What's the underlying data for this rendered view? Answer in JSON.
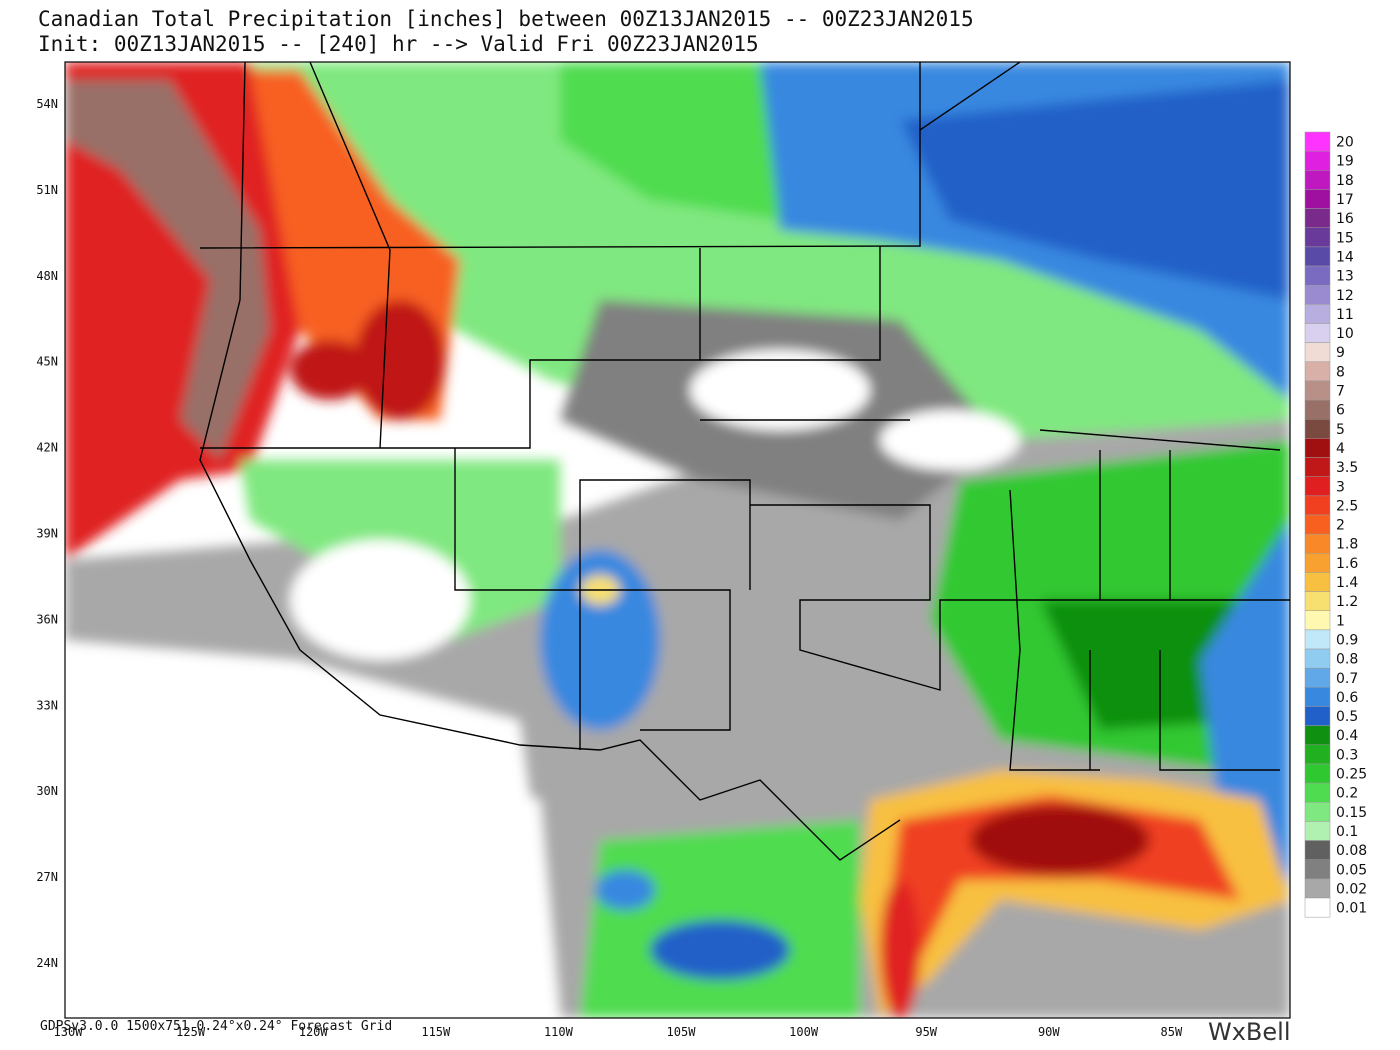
{
  "header": {
    "title": "Canadian Total Precipitation [inches] between 00Z13JAN2015 -- 00Z23JAN2015",
    "subtitle": "Init: 00Z13JAN2015 -- [240] hr --> Valid Fri 00Z23JAN2015"
  },
  "map": {
    "lat_labels": [
      "54N",
      "51N",
      "48N",
      "45N",
      "42N",
      "39N",
      "36N",
      "33N",
      "30N",
      "27N",
      "24N"
    ],
    "lon_labels": [
      "130W",
      "125W",
      "120W",
      "115W",
      "110W",
      "105W",
      "100W",
      "95W",
      "90W",
      "85W"
    ]
  },
  "legend": {
    "levels": [
      {
        "label": "20",
        "color": "#ff33ff"
      },
      {
        "label": "19",
        "color": "#e020e0"
      },
      {
        "label": "18",
        "color": "#c018c0"
      },
      {
        "label": "17",
        "color": "#a010a0"
      },
      {
        "label": "16",
        "color": "#7a2a8a"
      },
      {
        "label": "15",
        "color": "#6a3a9a"
      },
      {
        "label": "14",
        "color": "#5a4aa8"
      },
      {
        "label": "13",
        "color": "#7a6ac0"
      },
      {
        "label": "12",
        "color": "#9a8ad0"
      },
      {
        "label": "11",
        "color": "#b8aee0"
      },
      {
        "label": "10",
        "color": "#d8d0ee"
      },
      {
        "label": "9",
        "color": "#f0dcd4"
      },
      {
        "label": "8",
        "color": "#d8b0a8"
      },
      {
        "label": "7",
        "color": "#b89088"
      },
      {
        "label": "6",
        "color": "#987068"
      },
      {
        "label": "5",
        "color": "#7a4a40"
      },
      {
        "label": "4",
        "color": "#a01010"
      },
      {
        "label": "3.5",
        "color": "#c01818"
      },
      {
        "label": "3",
        "color": "#e02020"
      },
      {
        "label": "2.5",
        "color": "#f04020"
      },
      {
        "label": "2",
        "color": "#f86020"
      },
      {
        "label": "1.8",
        "color": "#f88828"
      },
      {
        "label": "1.6",
        "color": "#f8a030"
      },
      {
        "label": "1.4",
        "color": "#f8c040"
      },
      {
        "label": "1.2",
        "color": "#f8e070"
      },
      {
        "label": "1",
        "color": "#fff8b0"
      },
      {
        "label": "0.9",
        "color": "#c0e8f8"
      },
      {
        "label": "0.8",
        "color": "#90ccf0"
      },
      {
        "label": "0.7",
        "color": "#60a8e8"
      },
      {
        "label": "0.6",
        "color": "#3888e0"
      },
      {
        "label": "0.5",
        "color": "#2060c8"
      },
      {
        "label": "0.4",
        "color": "#109010"
      },
      {
        "label": "0.3",
        "color": "#20b020"
      },
      {
        "label": "0.25",
        "color": "#30c830"
      },
      {
        "label": "0.2",
        "color": "#50dc50"
      },
      {
        "label": "0.15",
        "color": "#80e880"
      },
      {
        "label": "0.1",
        "color": "#b0f0b0"
      },
      {
        "label": "0.08",
        "color": "#606060"
      },
      {
        "label": "0.05",
        "color": "#808080"
      },
      {
        "label": "0.02",
        "color": "#a8a8a8"
      },
      {
        "label": "0.01",
        "color": "#ffffff"
      }
    ]
  },
  "footer": {
    "grid_info": "GDPSv3.0.0 1500x751 0.24°x0.24° Forecast Grid",
    "logo": "WxBell"
  }
}
